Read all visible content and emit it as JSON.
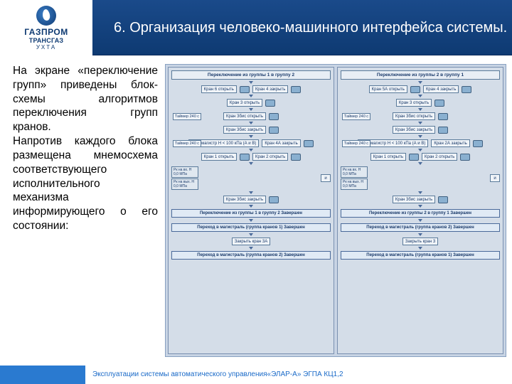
{
  "logo": {
    "brand": "ГАЗПРОМ",
    "division": "ТРАНСГАЗ",
    "city": "УХТА"
  },
  "title": "6. Организация человеко-машинного интерфейса системы.",
  "body_text": "На экране «переключение групп» приведены блок-схемы алгоритмов переключения групп кранов.\nНапротив каждого блока размещена мнемосхема соответствующего исполнительного механизма информирующего о его состоянии:",
  "footer": "Эксплуатации системы автоматического управления«ЭЛАР-А» ЭГПА КЦ1,2",
  "flowcharts": [
    {
      "title": "Переключение из группы 1 в группу 2",
      "steps": [
        "Кран 6 открыть",
        "Кран 3 открыть",
        "Кран 3бис открыть",
        "Кран 3бис закрыть",
        "Рн в магистр Н < 100 кПа (А и В)",
        "Кран 1 открыть",
        "Кран 3бис закрыть"
      ],
      "right_steps": [
        "Кран 4 закрыть",
        "Кран 4А закрыть",
        "Кран 2 открыть"
      ],
      "timers": [
        "Таймер 240 с",
        "Таймер 240 с"
      ],
      "gauges": [
        "Рк на вх. Н  0,0 МПа",
        "Рк на вых. Н  0,0 МПа"
      ],
      "finals": [
        "Переключение из группы 1 в группу 2 Завершен",
        "Переход в магистраль (группа кранов 1) Завершен",
        "Закрыть кран 3А",
        "Переход в магистраль (группа кранов 2) Завершен"
      ]
    },
    {
      "title": "Переключение из группы 2 в группу 1",
      "steps": [
        "Кран 5А открыть",
        "Кран 3 открыть",
        "Кран 3бис открыть",
        "Кран 3бис закрыть",
        "Рн в магистр Н < 100 кПа (А и В)",
        "Кран 1 открыть",
        "Кран 3бис закрыть"
      ],
      "right_steps": [
        "Кран 4 закрыть",
        "Кран 2А закрыть",
        "Кран 2 открыть"
      ],
      "timers": [
        "Таймер 240 с",
        "Таймер 240 с"
      ],
      "gauges": [
        "Рк на вх. Н  0,0 МПа",
        "Рк на вых. Н  0,0 МПа"
      ],
      "finals": [
        "Переключение из группы 2 в группу 1 Завершен",
        "Переход в магистраль (группа кранов 2) Завершен",
        "Закрыть кран 3",
        "Переход в магистраль (группа кранов 1) Завершен"
      ]
    }
  ],
  "colors": {
    "header_bg": "#0e3a72",
    "accent": "#2a7ad0",
    "diagram_bg": "#d4dde8",
    "box_border": "#5a7a9a"
  }
}
